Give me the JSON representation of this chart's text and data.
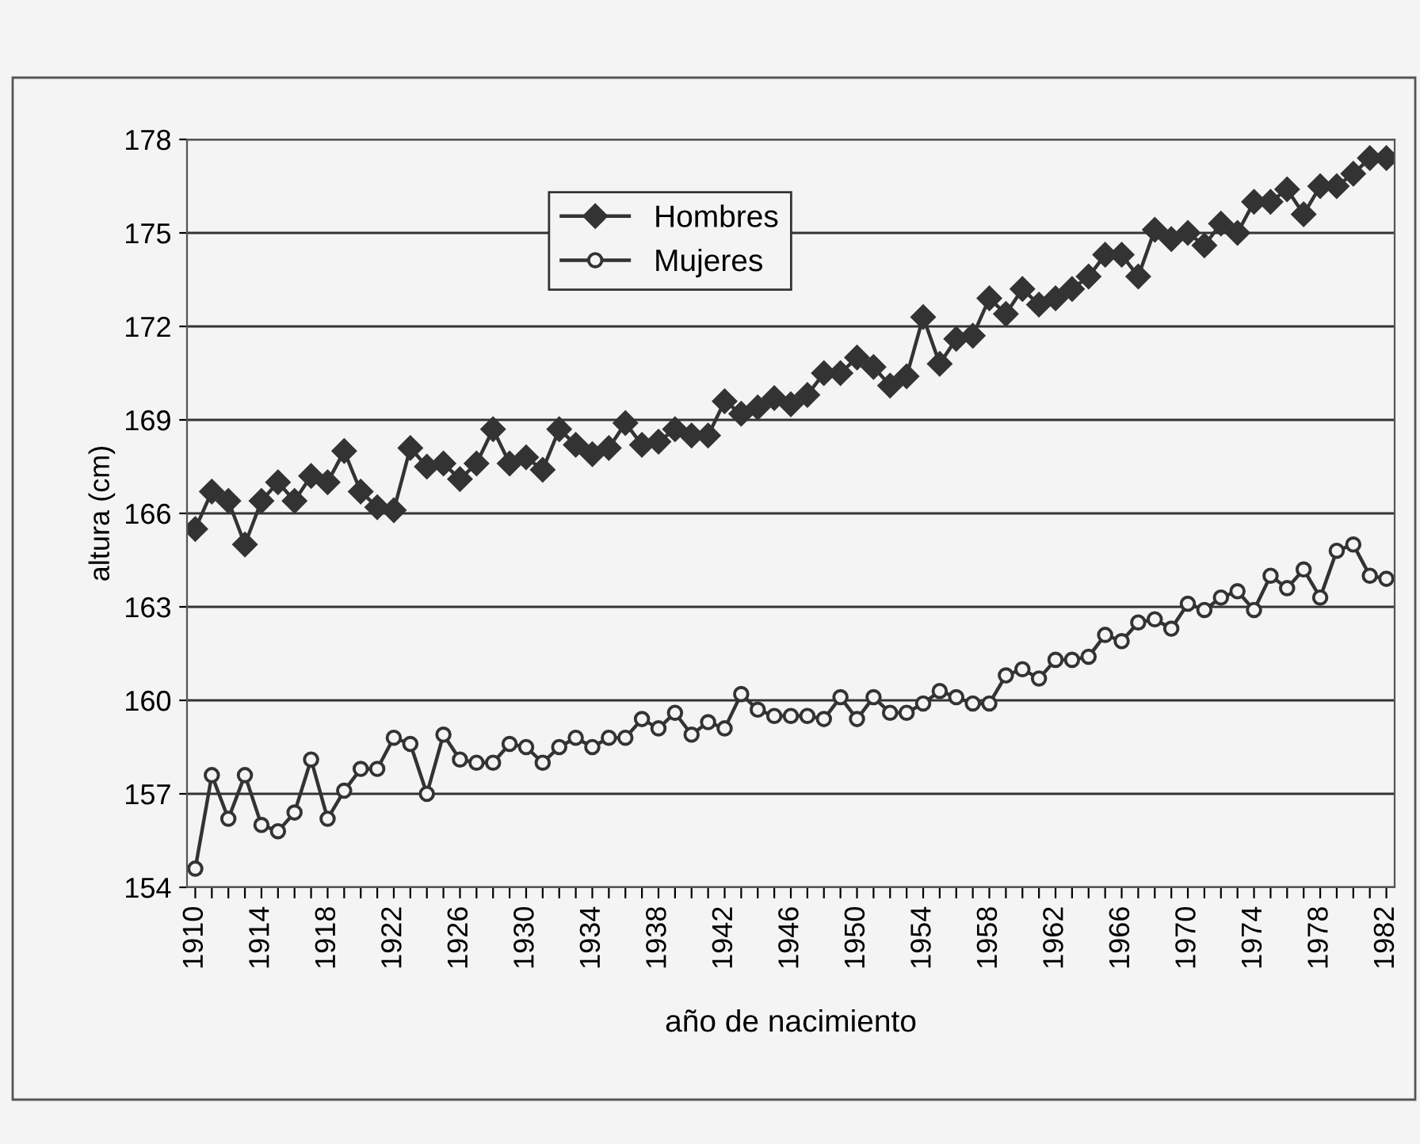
{
  "chart_data": {
    "type": "line",
    "xlabel": "año de nacimiento",
    "ylabel": "altura (cm)",
    "categories": [
      "1910",
      null,
      null,
      null,
      "1914",
      null,
      null,
      null,
      "1918",
      null,
      null,
      null,
      "1922",
      null,
      null,
      null,
      "1926",
      null,
      null,
      null,
      "1930",
      null,
      null,
      null,
      "1934",
      null,
      null,
      null,
      "1938",
      null,
      null,
      null,
      "1942",
      null,
      null,
      null,
      "1946",
      null,
      null,
      null,
      "1950",
      null,
      null,
      null,
      "1954",
      null,
      null,
      null,
      "1958",
      null,
      null,
      null,
      "1962",
      null,
      null,
      null,
      "1966",
      null,
      null,
      null,
      "1970",
      null,
      null,
      null,
      "1974",
      null,
      null,
      null,
      "1978",
      null,
      null,
      null,
      "1982"
    ],
    "series": [
      {
        "name": "Hombres",
        "color": "#333333",
        "marker": "diamond",
        "values": [
          165.5,
          166.7,
          166.4,
          165.0,
          166.4,
          167.0,
          166.4,
          167.2,
          167.0,
          168.0,
          166.7,
          166.2,
          166.1,
          168.1,
          167.5,
          167.6,
          167.1,
          167.6,
          168.7,
          167.6,
          167.8,
          167.4,
          168.7,
          168.2,
          167.9,
          168.1,
          168.9,
          168.2,
          168.3,
          168.7,
          168.5,
          168.5,
          169.6,
          169.2,
          169.4,
          169.7,
          169.5,
          169.8,
          170.5,
          170.5,
          171.0,
          170.7,
          170.1,
          170.4,
          172.3,
          170.8,
          171.6,
          171.7,
          172.9,
          172.4,
          173.2,
          172.7,
          172.9,
          173.2,
          173.6,
          174.3,
          174.3,
          173.6,
          175.1,
          174.8,
          175.0,
          174.6,
          175.3,
          175.0,
          176.0,
          176.0,
          176.4,
          175.6,
          176.5,
          176.5,
          176.9,
          177.4,
          177.4
        ]
      },
      {
        "name": "Mujeres",
        "color": "#333333",
        "marker": "circle",
        "values": [
          154.6,
          157.6,
          156.2,
          157.6,
          156.0,
          155.8,
          156.4,
          158.1,
          156.2,
          157.1,
          157.8,
          157.8,
          158.8,
          158.6,
          157.0,
          158.9,
          158.1,
          158.0,
          158.0,
          158.6,
          158.5,
          158.0,
          158.5,
          158.8,
          158.5,
          158.8,
          158.8,
          159.4,
          159.1,
          159.6,
          158.9,
          159.3,
          159.1,
          160.2,
          159.7,
          159.5,
          159.5,
          159.5,
          159.4,
          160.1,
          159.4,
          160.1,
          159.6,
          159.6,
          159.9,
          160.3,
          160.1,
          159.9,
          159.9,
          160.8,
          161.0,
          160.7,
          161.3,
          161.3,
          161.4,
          162.1,
          161.9,
          162.5,
          162.6,
          162.3,
          163.1,
          162.9,
          163.3,
          163.5,
          162.9,
          164.0,
          163.6,
          164.2,
          163.3,
          164.8,
          165.0,
          164.0,
          163.9
        ]
      }
    ],
    "ylim": [
      154,
      178
    ],
    "yticks": [
      154,
      157,
      160,
      163,
      166,
      169,
      172,
      175,
      178
    ],
    "grid": "y",
    "legend": "top"
  }
}
